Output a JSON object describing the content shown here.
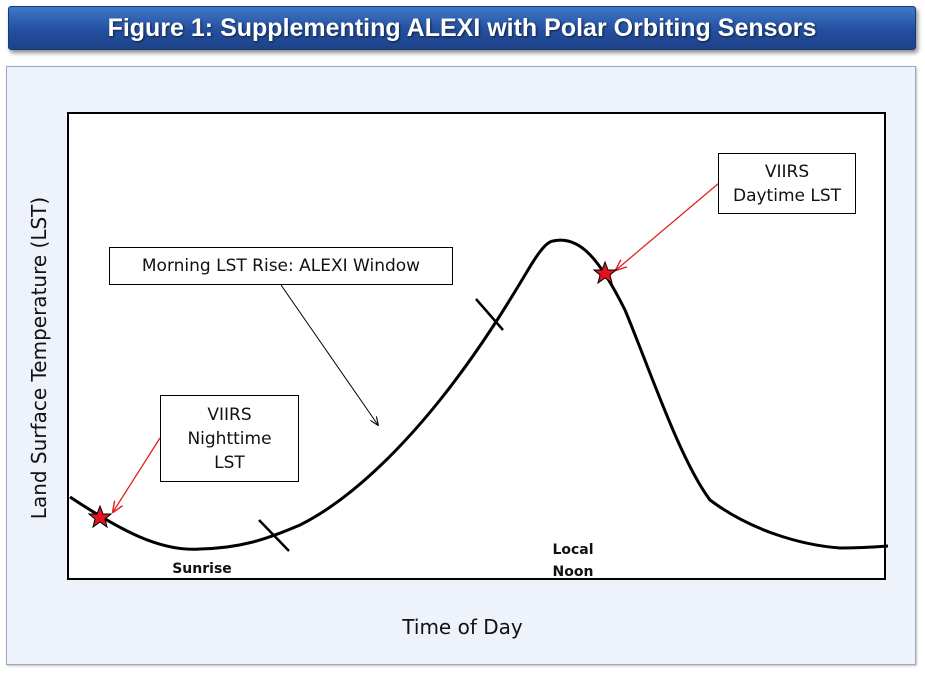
{
  "title": "Figure 1: Supplementing ALEXI with Polar Orbiting Sensors",
  "axes": {
    "x_label": "Time of Day",
    "y_label": "Land Surface Temperature (LST)"
  },
  "callouts": {
    "nighttime": "VIIRS\nNighttime\nLST",
    "daytime": "VIIRS\nDaytime LST",
    "alexi_window": "Morning LST Rise: ALEXI Window"
  },
  "markers": {
    "sunrise": "Sunrise",
    "local_noon": "Local\nNoon"
  },
  "colors": {
    "title_bar": "#244f9f",
    "panel": "#eef3fb",
    "star_fill": "#e0141e",
    "arrow_red": "#e02020",
    "curve": "#000000"
  }
}
